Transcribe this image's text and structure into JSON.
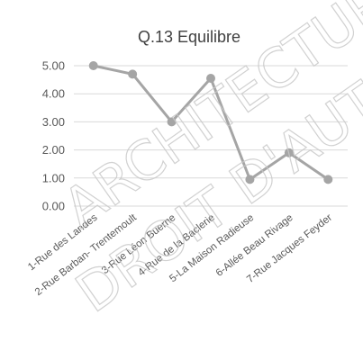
{
  "chart_data": {
    "type": "line",
    "title": "Q.13 Equilibre",
    "xlabel": "",
    "ylabel": "",
    "categories": [
      "1-Rue des Landes",
      "2-Rue Barban- Trentemoult",
      "3-Rue Léon Buerne",
      "4-Rue de la Baclerie",
      "5-La Maison Radieuse",
      "6-Allée Beau Rivage",
      "7-Rue Jacques Feyder"
    ],
    "series": [
      {
        "values": [
          5.0,
          4.7,
          3.0,
          4.55,
          0.95,
          1.9,
          0.95
        ]
      }
    ],
    "ylim": [
      0,
      5
    ],
    "yticks": [
      "0.00",
      "1.00",
      "2.00",
      "3.00",
      "4.00",
      "5.00"
    ],
    "grid": true,
    "legend": "none",
    "colors": {
      "line": "#a5a5a5",
      "grid": "#d9d9d9",
      "text": "#595959"
    }
  },
  "watermark": {
    "line1": "ARCHITECTURE",
    "line2": "DROIT D'AUTEUR"
  }
}
